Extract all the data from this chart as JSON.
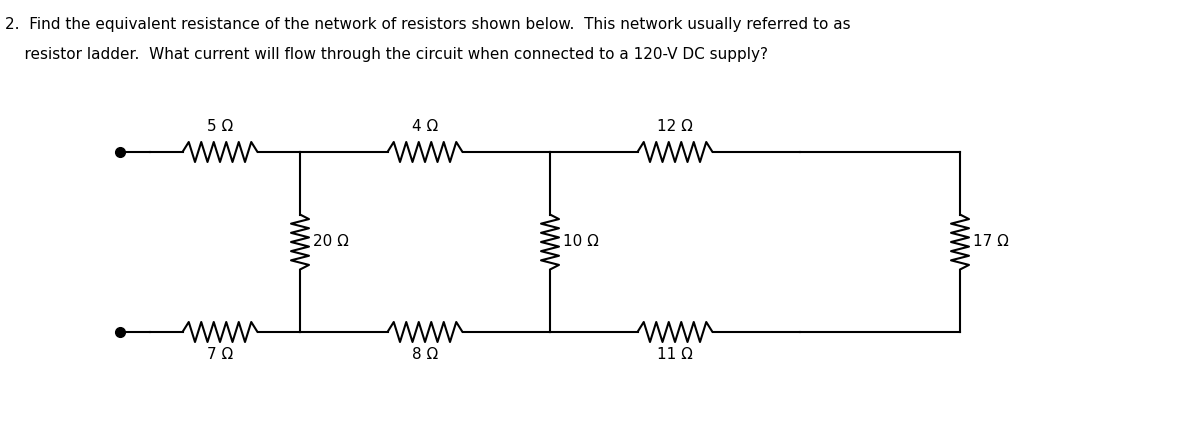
{
  "title_line1": "2.  Find the equivalent resistance of the network of resistors shown below.  This network usually referred to as",
  "title_line2": "    resistor ladder.  What current will flow through the circuit when connected to a 120-V DC supply?",
  "bg_color": "#ffffff",
  "line_color": "#000000",
  "text_color": "#000000",
  "resistor_labels": {
    "R1": "5 Ω",
    "R2": "4 Ω",
    "R3": "12 Ω",
    "R4": "20 Ω",
    "R5": "10 Ω",
    "R6": "17 Ω",
    "R7": "7 Ω",
    "R8": "8 Ω",
    "R9": "11 Ω"
  },
  "font_size_title": 11,
  "font_size_label": 11
}
